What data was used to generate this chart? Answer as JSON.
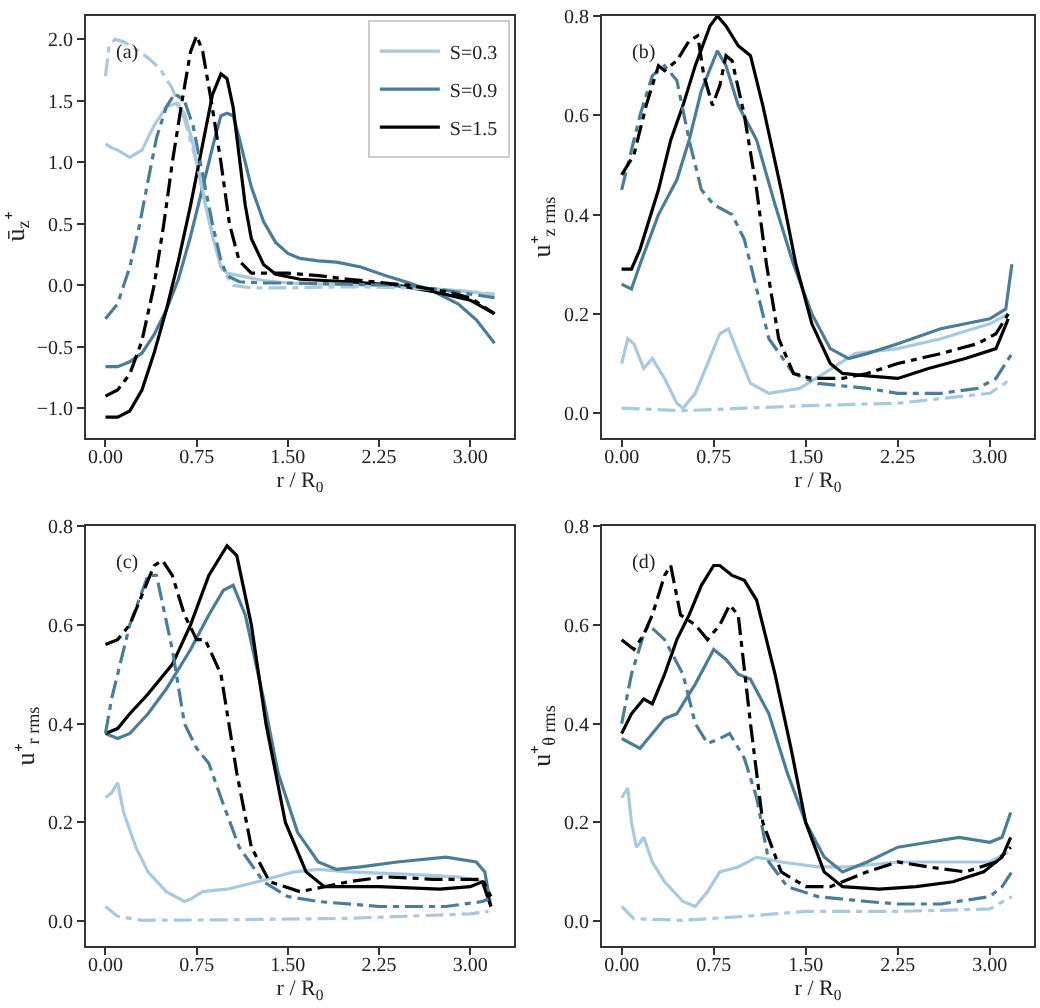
{
  "chart_data": [
    {
      "type": "line",
      "ylabel": "ū$_{z}$⁺",
      "xlabel": "r / R$_{0}$",
      "annotations": [
        "(a)"
      ],
      "legend": "top right",
      "xlim": [
        -0.16,
        3.36
      ],
      "ylim": [
        -1.24,
        2.19
      ],
      "xticks": [
        {
          "value": 0,
          "label": "0.00"
        },
        {
          "value": 0.75,
          "label": "0.75"
        },
        {
          "value": 1.5,
          "label": "1.50"
        },
        {
          "value": 2.25,
          "label": "2.25"
        },
        {
          "value": 3,
          "label": "3.00"
        }
      ],
      "yticks": [
        {
          "value": -1,
          "label": "−1.0"
        },
        {
          "value": -0.5,
          "label": "−0.5"
        },
        {
          "value": 0,
          "label": "0.0"
        },
        {
          "value": 0.5,
          "label": "0.5"
        },
        {
          "value": 1,
          "label": "1.0"
        },
        {
          "value": 1.5,
          "label": "1.5"
        },
        {
          "value": 2,
          "label": "2.0"
        }
      ],
      "series": [
        {
          "name": "S=0.3",
          "color": "#a9c9de",
          "line_style": "solid",
          "x": [
            0,
            0.05,
            0.1,
            0.2,
            0.3,
            0.4,
            0.5,
            0.58,
            0.65,
            0.72,
            0.8,
            0.88,
            0.95,
            1.0,
            1.1,
            1.3,
            1.5,
            1.8,
            2.25,
            2.6,
            3.0,
            3.2
          ],
          "values": [
            1.15,
            1.12,
            1.1,
            1.04,
            1.1,
            1.3,
            1.45,
            1.48,
            1.4,
            1.15,
            0.75,
            0.4,
            0.15,
            0.1,
            0.08,
            0.04,
            0.02,
            0.01,
            0.0,
            -0.02,
            -0.05,
            -0.08
          ]
        },
        {
          "name": "S=0.9",
          "color": "#4b7d97",
          "line_style": "solid",
          "x": [
            0,
            0.1,
            0.2,
            0.3,
            0.4,
            0.5,
            0.6,
            0.7,
            0.8,
            0.9,
            0.95,
            1.0,
            1.05,
            1.1,
            1.2,
            1.3,
            1.4,
            1.5,
            1.6,
            1.75,
            1.9,
            2.1,
            2.3,
            2.5,
            2.7,
            2.9,
            3.05,
            3.2
          ],
          "values": [
            -0.66,
            -0.66,
            -0.62,
            -0.55,
            -0.4,
            -0.2,
            0.05,
            0.4,
            0.8,
            1.2,
            1.38,
            1.4,
            1.38,
            1.2,
            0.8,
            0.52,
            0.35,
            0.26,
            0.22,
            0.2,
            0.19,
            0.15,
            0.08,
            0.02,
            -0.05,
            -0.15,
            -0.28,
            -0.47
          ]
        },
        {
          "name": "S=1.5",
          "color": "#000000",
          "line_style": "solid",
          "x": [
            0,
            0.1,
            0.2,
            0.3,
            0.4,
            0.5,
            0.6,
            0.7,
            0.8,
            0.88,
            0.95,
            1.0,
            1.05,
            1.1,
            1.15,
            1.2,
            1.3,
            1.4,
            1.6,
            2.0,
            2.4,
            2.7,
            3.0,
            3.2
          ],
          "values": [
            -1.07,
            -1.07,
            -1.02,
            -0.85,
            -0.55,
            -0.2,
            0.2,
            0.65,
            1.15,
            1.55,
            1.72,
            1.68,
            1.45,
            1.05,
            0.65,
            0.38,
            0.17,
            0.09,
            0.05,
            0.03,
            0.0,
            -0.05,
            -0.12,
            -0.23
          ]
        },
        {
          "color": "#a9c9de",
          "line_style": "dashdot",
          "x": [
            0,
            0.03,
            0.08,
            0.15,
            0.25,
            0.35,
            0.45,
            0.55,
            0.65,
            0.75,
            0.85,
            0.95,
            1.05,
            1.2,
            1.5,
            2.0,
            2.5,
            3.0,
            3.2
          ],
          "values": [
            1.7,
            1.95,
            2.0,
            1.98,
            1.92,
            1.85,
            1.76,
            1.6,
            1.35,
            1.0,
            0.55,
            0.15,
            0.0,
            -0.02,
            -0.02,
            -0.01,
            -0.02,
            -0.05,
            -0.07
          ]
        },
        {
          "color": "#4b7d97",
          "line_style": "dashdot",
          "x": [
            0,
            0.1,
            0.2,
            0.28,
            0.35,
            0.42,
            0.5,
            0.57,
            0.65,
            0.72,
            0.8,
            0.88,
            0.95,
            1.0,
            1.1,
            1.3,
            1.5,
            2.0,
            2.5,
            2.8,
            3.0,
            3.2
          ],
          "values": [
            -0.27,
            -0.15,
            0.15,
            0.49,
            0.85,
            1.2,
            1.45,
            1.56,
            1.5,
            1.3,
            0.9,
            0.5,
            0.2,
            0.08,
            0.03,
            0.02,
            0.02,
            0.01,
            0.0,
            -0.04,
            -0.07,
            -0.1
          ]
        },
        {
          "color": "#000000",
          "line_style": "dashdot",
          "x": [
            0,
            0.1,
            0.2,
            0.3,
            0.4,
            0.48,
            0.55,
            0.63,
            0.7,
            0.75,
            0.8,
            0.87,
            0.95,
            1.02,
            1.1,
            1.2,
            1.5,
            1.75,
            2.0,
            2.5,
            2.8,
            3.0,
            3.2
          ],
          "values": [
            -0.9,
            -0.85,
            -0.72,
            -0.45,
            0.0,
            0.5,
            1.0,
            1.5,
            1.9,
            2.03,
            1.9,
            1.5,
            1.0,
            0.5,
            0.2,
            0.1,
            0.1,
            0.08,
            0.05,
            0.0,
            -0.05,
            -0.1,
            -0.23
          ]
        }
      ]
    },
    {
      "type": "line",
      "ylabel": "u⁺$_{z rms}$",
      "xlabel": "r / R$_{0}$",
      "annotations": [
        "(b)"
      ],
      "xlim": [
        -0.16,
        3.36
      ],
      "ylim": [
        -0.05,
        0.8
      ],
      "xticks": [
        {
          "value": 0,
          "label": "0.00"
        },
        {
          "value": 0.75,
          "label": "0.75"
        },
        {
          "value": 1.5,
          "label": "1.50"
        },
        {
          "value": 2.25,
          "label": "2.25"
        },
        {
          "value": 3,
          "label": "3.00"
        }
      ],
      "yticks": [
        {
          "value": 0,
          "label": "0.0"
        },
        0.2,
        0.4,
        0.6,
        0.8
      ],
      "series": [
        {
          "color": "#a9c9de",
          "line_style": "solid",
          "x": [
            0,
            0.05,
            0.1,
            0.18,
            0.25,
            0.35,
            0.45,
            0.5,
            0.6,
            0.7,
            0.8,
            0.87,
            0.95,
            1.05,
            1.2,
            1.45,
            1.65,
            1.9,
            2.25,
            2.6,
            3.0,
            3.15
          ],
          "values": [
            0.1,
            0.15,
            0.14,
            0.09,
            0.11,
            0.07,
            0.02,
            0.01,
            0.04,
            0.1,
            0.16,
            0.17,
            0.12,
            0.06,
            0.04,
            0.05,
            0.08,
            0.12,
            0.13,
            0.15,
            0.18,
            0.2
          ]
        },
        {
          "color": "#4b7d97",
          "line_style": "solid",
          "x": [
            0,
            0.08,
            0.15,
            0.3,
            0.45,
            0.55,
            0.65,
            0.78,
            0.85,
            0.95,
            1.1,
            1.25,
            1.4,
            1.55,
            1.7,
            1.85,
            2.0,
            2.25,
            2.6,
            3.0,
            3.13,
            3.18
          ],
          "values": [
            0.26,
            0.25,
            0.3,
            0.4,
            0.47,
            0.55,
            0.65,
            0.73,
            0.7,
            0.62,
            0.55,
            0.42,
            0.3,
            0.2,
            0.13,
            0.11,
            0.12,
            0.14,
            0.17,
            0.19,
            0.21,
            0.3
          ]
        },
        {
          "color": "#000000",
          "line_style": "solid",
          "x": [
            0,
            0.08,
            0.15,
            0.3,
            0.4,
            0.5,
            0.6,
            0.72,
            0.78,
            0.85,
            0.95,
            1.05,
            1.15,
            1.3,
            1.42,
            1.55,
            1.7,
            1.8,
            2.0,
            2.25,
            2.5,
            2.8,
            3.05,
            3.15
          ],
          "values": [
            0.29,
            0.29,
            0.33,
            0.45,
            0.55,
            0.62,
            0.7,
            0.78,
            0.8,
            0.78,
            0.74,
            0.72,
            0.62,
            0.45,
            0.3,
            0.18,
            0.1,
            0.08,
            0.075,
            0.07,
            0.09,
            0.11,
            0.13,
            0.19
          ]
        },
        {
          "color": "#a9c9de",
          "line_style": "dashdot",
          "x": [
            0,
            0.5,
            1.0,
            1.5,
            2.25,
            3.0,
            3.18
          ],
          "values": [
            0.01,
            0.005,
            0.01,
            0.015,
            0.02,
            0.04,
            0.07
          ]
        },
        {
          "color": "#4b7d97",
          "line_style": "dashdot",
          "x": [
            0,
            0.05,
            0.15,
            0.25,
            0.35,
            0.45,
            0.55,
            0.65,
            0.75,
            0.9,
            1.0,
            1.1,
            1.2,
            1.4,
            1.6,
            2.0,
            2.25,
            2.6,
            2.9,
            3.05,
            3.18
          ],
          "values": [
            0.45,
            0.5,
            0.6,
            0.68,
            0.7,
            0.67,
            0.55,
            0.45,
            0.42,
            0.4,
            0.35,
            0.25,
            0.15,
            0.08,
            0.06,
            0.05,
            0.04,
            0.04,
            0.05,
            0.07,
            0.12
          ]
        },
        {
          "color": "#000000",
          "line_style": "dashdot",
          "x": [
            0,
            0.05,
            0.1,
            0.2,
            0.3,
            0.35,
            0.45,
            0.55,
            0.62,
            0.67,
            0.74,
            0.8,
            0.85,
            0.9,
            1.0,
            1.1,
            1.18,
            1.28,
            1.4,
            1.55,
            1.8,
            2.0,
            2.25,
            2.6,
            2.9,
            3.05,
            3.15
          ],
          "values": [
            0.48,
            0.5,
            0.52,
            0.62,
            0.7,
            0.69,
            0.71,
            0.75,
            0.76,
            0.68,
            0.62,
            0.66,
            0.72,
            0.71,
            0.6,
            0.45,
            0.3,
            0.15,
            0.08,
            0.07,
            0.07,
            0.08,
            0.1,
            0.12,
            0.14,
            0.16,
            0.2
          ]
        }
      ]
    },
    {
      "type": "line",
      "ylabel": "u⁺$_{r rms}$",
      "xlabel": "r / R$_{0}$",
      "annotations": [
        "(c)"
      ],
      "xlim": [
        -0.16,
        3.36
      ],
      "ylim": [
        -0.05,
        0.8
      ],
      "xticks": [
        {
          "value": 0,
          "label": "0.00"
        },
        {
          "value": 0.75,
          "label": "0.75"
        },
        {
          "value": 1.5,
          "label": "1.50"
        },
        {
          "value": 2.25,
          "label": "2.25"
        },
        {
          "value": 3,
          "label": "3.00"
        }
      ],
      "yticks": [
        {
          "value": 0,
          "label": "0.0"
        },
        0.2,
        0.4,
        0.6,
        0.8
      ],
      "series": [
        {
          "color": "#a9c9de",
          "line_style": "solid",
          "x": [
            0,
            0.05,
            0.1,
            0.15,
            0.25,
            0.35,
            0.5,
            0.65,
            0.7,
            0.8,
            1.0,
            1.25,
            1.55,
            1.75,
            2.0,
            2.5,
            2.9,
            3.1,
            3.15
          ],
          "values": [
            0.25,
            0.26,
            0.28,
            0.22,
            0.15,
            0.1,
            0.06,
            0.04,
            0.045,
            0.06,
            0.065,
            0.08,
            0.1,
            0.105,
            0.1,
            0.095,
            0.09,
            0.08,
            0.05
          ]
        },
        {
          "color": "#4b7d97",
          "line_style": "solid",
          "x": [
            0,
            0.1,
            0.2,
            0.35,
            0.5,
            0.7,
            0.85,
            0.97,
            1.05,
            1.15,
            1.3,
            1.42,
            1.58,
            1.75,
            1.9,
            2.1,
            2.4,
            2.8,
            3.05,
            3.12,
            3.17
          ],
          "values": [
            0.38,
            0.37,
            0.38,
            0.42,
            0.47,
            0.55,
            0.62,
            0.67,
            0.68,
            0.62,
            0.45,
            0.3,
            0.18,
            0.12,
            0.105,
            0.11,
            0.12,
            0.13,
            0.12,
            0.1,
            0.03
          ]
        },
        {
          "color": "#000000",
          "line_style": "solid",
          "x": [
            0,
            0.1,
            0.2,
            0.35,
            0.55,
            0.7,
            0.85,
            1.0,
            1.08,
            1.2,
            1.32,
            1.48,
            1.65,
            1.8,
            2.25,
            2.75,
            3.0,
            3.1,
            3.17
          ],
          "values": [
            0.38,
            0.39,
            0.42,
            0.46,
            0.52,
            0.6,
            0.7,
            0.76,
            0.74,
            0.6,
            0.4,
            0.2,
            0.1,
            0.07,
            0.07,
            0.065,
            0.07,
            0.08,
            0.03
          ]
        },
        {
          "color": "#a9c9de",
          "line_style": "dashdot",
          "x": [
            0,
            0.1,
            0.3,
            1.0,
            2.0,
            3.0,
            3.15
          ],
          "values": [
            0.03,
            0.01,
            0.002,
            0.003,
            0.006,
            0.015,
            0.02
          ]
        },
        {
          "color": "#4b7d97",
          "line_style": "dashdot",
          "x": [
            0,
            0.05,
            0.2,
            0.35,
            0.42,
            0.55,
            0.65,
            0.75,
            0.85,
            0.95,
            1.1,
            1.3,
            1.5,
            1.75,
            2.25,
            2.8,
            3.1,
            3.15
          ],
          "values": [
            0.38,
            0.45,
            0.6,
            0.7,
            0.7,
            0.55,
            0.4,
            0.35,
            0.32,
            0.25,
            0.15,
            0.08,
            0.05,
            0.04,
            0.03,
            0.03,
            0.04,
            0.045
          ]
        },
        {
          "color": "#000000",
          "line_style": "dashdot",
          "x": [
            0,
            0.1,
            0.2,
            0.3,
            0.4,
            0.47,
            0.55,
            0.65,
            0.75,
            0.82,
            0.95,
            1.08,
            1.2,
            1.35,
            1.6,
            2.0,
            2.3,
            2.7,
            3.1,
            3.17
          ],
          "values": [
            0.56,
            0.57,
            0.6,
            0.66,
            0.72,
            0.73,
            0.7,
            0.62,
            0.57,
            0.57,
            0.5,
            0.3,
            0.15,
            0.08,
            0.06,
            0.08,
            0.09,
            0.085,
            0.085,
            0.05
          ]
        }
      ]
    },
    {
      "type": "line",
      "ylabel": "u⁺$_{θ rms}$",
      "xlabel": "r / R$_{0}$",
      "annotations": [
        "(d)"
      ],
      "xlim": [
        -0.16,
        3.36
      ],
      "ylim": [
        -0.05,
        0.8
      ],
      "xticks": [
        {
          "value": 0,
          "label": "0.00"
        },
        {
          "value": 0.75,
          "label": "0.75"
        },
        {
          "value": 1.5,
          "label": "1.50"
        },
        {
          "value": 2.25,
          "label": "2.25"
        },
        {
          "value": 3,
          "label": "3.00"
        }
      ],
      "yticks": [
        {
          "value": 0,
          "label": "0.0"
        },
        0.2,
        0.4,
        0.6,
        0.8
      ],
      "series": [
        {
          "color": "#a9c9de",
          "line_style": "solid",
          "x": [
            0,
            0.05,
            0.08,
            0.12,
            0.18,
            0.25,
            0.35,
            0.5,
            0.6,
            0.7,
            0.8,
            0.95,
            1.1,
            1.3,
            1.6,
            1.85,
            2.25,
            2.7,
            3.0,
            3.15
          ],
          "values": [
            0.25,
            0.27,
            0.2,
            0.15,
            0.17,
            0.12,
            0.08,
            0.04,
            0.03,
            0.06,
            0.1,
            0.11,
            0.13,
            0.12,
            0.11,
            0.11,
            0.12,
            0.12,
            0.12,
            0.14
          ]
        },
        {
          "color": "#4b7d97",
          "line_style": "solid",
          "x": [
            0,
            0.15,
            0.25,
            0.35,
            0.45,
            0.6,
            0.75,
            0.85,
            0.95,
            1.05,
            1.2,
            1.35,
            1.5,
            1.65,
            1.8,
            2.0,
            2.25,
            2.5,
            2.75,
            3.0,
            3.1,
            3.17
          ],
          "values": [
            0.37,
            0.35,
            0.38,
            0.41,
            0.42,
            0.48,
            0.55,
            0.53,
            0.5,
            0.49,
            0.42,
            0.3,
            0.2,
            0.13,
            0.1,
            0.12,
            0.15,
            0.16,
            0.17,
            0.16,
            0.17,
            0.22
          ]
        },
        {
          "color": "#000000",
          "line_style": "solid",
          "x": [
            0,
            0.08,
            0.18,
            0.25,
            0.35,
            0.45,
            0.55,
            0.65,
            0.75,
            0.8,
            0.9,
            1.0,
            1.1,
            1.25,
            1.38,
            1.5,
            1.65,
            1.8,
            2.1,
            2.4,
            2.7,
            2.95,
            3.1,
            3.17
          ],
          "values": [
            0.38,
            0.42,
            0.45,
            0.44,
            0.5,
            0.57,
            0.62,
            0.68,
            0.72,
            0.72,
            0.7,
            0.69,
            0.65,
            0.5,
            0.35,
            0.2,
            0.1,
            0.07,
            0.065,
            0.07,
            0.08,
            0.1,
            0.13,
            0.17
          ]
        },
        {
          "color": "#a9c9de",
          "line_style": "dashdot",
          "x": [
            0,
            0.1,
            0.5,
            1.0,
            1.5,
            2.25,
            3.0,
            3.18
          ],
          "values": [
            0.03,
            0.005,
            0.002,
            0.01,
            0.02,
            0.02,
            0.025,
            0.05
          ]
        },
        {
          "color": "#4b7d97",
          "line_style": "dashdot",
          "x": [
            0,
            0.08,
            0.18,
            0.22,
            0.35,
            0.5,
            0.6,
            0.7,
            0.8,
            0.88,
            1.0,
            1.1,
            1.2,
            1.35,
            1.6,
            2.0,
            2.25,
            2.6,
            3.0,
            3.1,
            3.18
          ],
          "values": [
            0.4,
            0.5,
            0.58,
            0.6,
            0.57,
            0.5,
            0.4,
            0.36,
            0.37,
            0.38,
            0.33,
            0.25,
            0.12,
            0.07,
            0.05,
            0.04,
            0.035,
            0.035,
            0.05,
            0.07,
            0.1
          ]
        },
        {
          "color": "#000000",
          "line_style": "dashdot",
          "x": [
            0,
            0.1,
            0.18,
            0.25,
            0.35,
            0.4,
            0.48,
            0.6,
            0.7,
            0.8,
            0.88,
            0.95,
            1.05,
            1.15,
            1.3,
            1.5,
            1.7,
            2.0,
            2.25,
            2.5,
            2.8,
            3.05,
            3.17
          ],
          "values": [
            0.57,
            0.55,
            0.58,
            0.62,
            0.7,
            0.72,
            0.62,
            0.6,
            0.57,
            0.6,
            0.64,
            0.62,
            0.4,
            0.2,
            0.1,
            0.07,
            0.07,
            0.1,
            0.12,
            0.11,
            0.1,
            0.12,
            0.15
          ]
        }
      ]
    }
  ]
}
